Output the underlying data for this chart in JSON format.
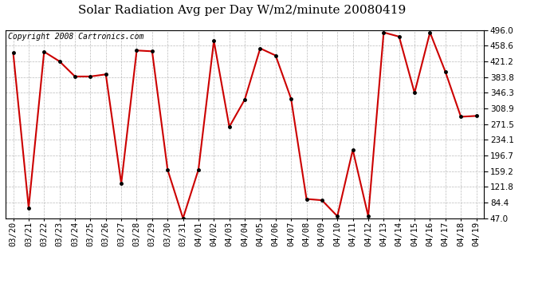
{
  "title": "Solar Radiation Avg per Day W/m2/minute 20080419",
  "copyright": "Copyright 2008 Cartronics.com",
  "labels": [
    "03/20",
    "03/21",
    "03/22",
    "03/23",
    "03/24",
    "03/25",
    "03/26",
    "03/27",
    "03/28",
    "03/29",
    "03/30",
    "03/31",
    "04/01",
    "04/02",
    "04/03",
    "04/04",
    "04/05",
    "04/06",
    "04/07",
    "04/08",
    "04/09",
    "04/10",
    "04/11",
    "04/12",
    "04/13",
    "04/14",
    "04/15",
    "04/16",
    "04/17",
    "04/18",
    "04/19"
  ],
  "values": [
    441,
    72,
    444,
    421,
    385,
    385,
    390,
    130,
    447,
    445,
    163,
    47,
    163,
    470,
    265,
    330,
    452,
    435,
    332,
    93,
    90,
    52,
    210,
    52,
    490,
    480,
    346,
    490,
    396,
    289,
    291
  ],
  "ymin": 47.0,
  "ymax": 496.0,
  "yticks": [
    47.0,
    84.4,
    121.8,
    159.2,
    196.7,
    234.1,
    271.5,
    308.9,
    346.3,
    383.8,
    421.2,
    458.6,
    496.0
  ],
  "line_color": "#cc0000",
  "marker_color": "#000000",
  "bg_color": "#ffffff",
  "grid_color": "#bbbbbb",
  "title_fontsize": 11,
  "copyright_fontsize": 7,
  "tick_fontsize": 7.5
}
